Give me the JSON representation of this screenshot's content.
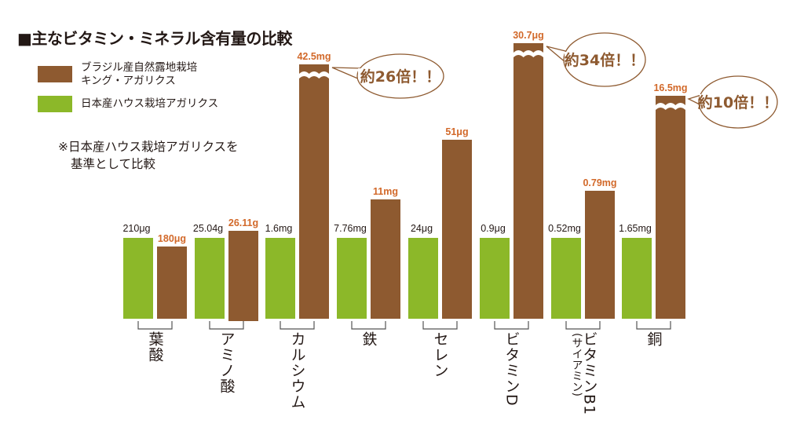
{
  "chart_data": {
    "type": "bar",
    "title": "■主なビタミン・ミネラル含有量の比較",
    "note": [
      "※日本産ハウス栽培アガリクスを",
      "基準として比較"
    ],
    "colors": {
      "brazil": "#8e5a30",
      "house": "#8cb829",
      "brazil_label": "#d2692a",
      "callout": "#8e5a30"
    },
    "series": [
      {
        "name": "ブラジル産自然露地栽培\nキング・アガリクス",
        "name_lines": [
          "ブラジル産自然露地栽培",
          "キング・アガリクス"
        ],
        "key": "brazil",
        "values": [
          180,
          26.11,
          42.5,
          11,
          51,
          30.7,
          0.79,
          16.5
        ],
        "labels": [
          "180μg",
          "26.11g",
          "42.5mg",
          "11mg",
          "51μg",
          "30.7μg",
          "0.79mg",
          "16.5mg"
        ]
      },
      {
        "name": "日本産ハウス栽培アガリクス",
        "key": "house",
        "values": [
          210,
          25.04,
          1.6,
          7.76,
          24,
          0.9,
          0.52,
          1.65
        ],
        "labels": [
          "210μg",
          "25.04g",
          "1.6mg",
          "7.76mg",
          "24μg",
          "0.9μg",
          "0.52mg",
          "1.65mg"
        ]
      }
    ],
    "categories": [
      "葉酸",
      "アミノ酸",
      "カルシウム",
      "鉄",
      "セレン",
      "ビタミンD",
      "ビタミンB1",
      "銅"
    ],
    "category_sublabels": {
      "6": "(サイアミン)"
    },
    "scale_note": "bars normalized to house value; broken bars for large ratios",
    "legend_placement": "top-left",
    "callouts": [
      {
        "category": "カルシウム",
        "text": "約26倍！！"
      },
      {
        "category": "ビタミンD",
        "text": "約34倍！！"
      },
      {
        "category": "銅",
        "text": "約10倍！！"
      }
    ]
  }
}
